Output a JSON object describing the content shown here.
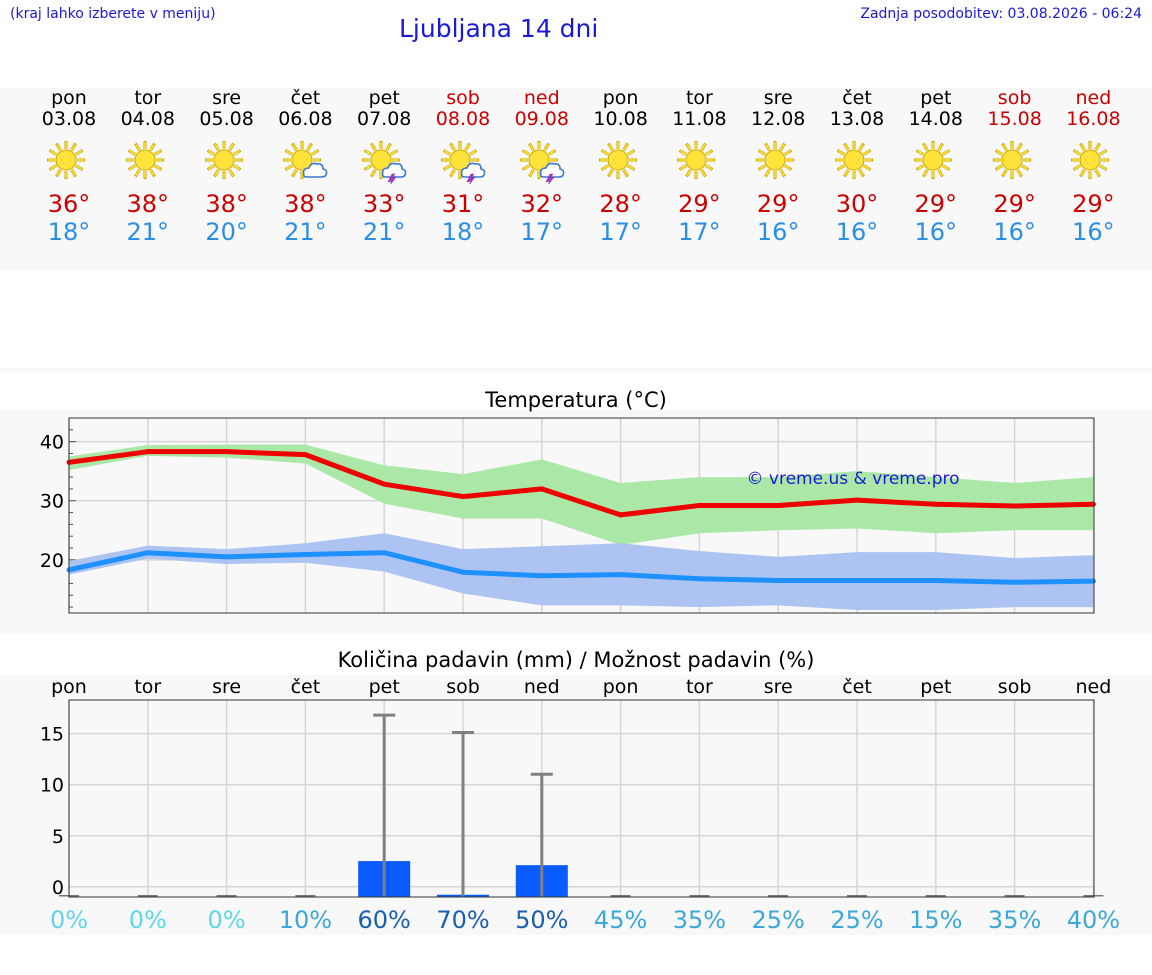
{
  "header": {
    "left_note": "(kraj lahko izberete v meniju)",
    "title": "Ljubljana 14 dni",
    "updated": "Zadnja posodobitev: 03.08.2026 - 06:24"
  },
  "colors": {
    "title_blue": "#1a1ad6",
    "weekend_red": "#cc0000",
    "max_line": "#ee0000",
    "max_band": "#abe8a8",
    "min_line": "#1e90ff",
    "min_band": "#adc4f2",
    "precip_bar": "#0a5cff",
    "error_bar": "#808080"
  },
  "days": [
    {
      "name": "pon",
      "date": "03.08",
      "weekend": false,
      "icon": "sun-icon",
      "tmax": "36°",
      "tmin": "18°"
    },
    {
      "name": "tor",
      "date": "04.08",
      "weekend": false,
      "icon": "sun-icon",
      "tmax": "38°",
      "tmin": "21°"
    },
    {
      "name": "sre",
      "date": "05.08",
      "weekend": false,
      "icon": "sun-icon",
      "tmax": "38°",
      "tmin": "20°"
    },
    {
      "name": "čet",
      "date": "06.08",
      "weekend": false,
      "icon": "sun-cloud-icon",
      "tmax": "38°",
      "tmin": "21°"
    },
    {
      "name": "pet",
      "date": "07.08",
      "weekend": false,
      "icon": "sun-storm-icon",
      "tmax": "33°",
      "tmin": "21°"
    },
    {
      "name": "sob",
      "date": "08.08",
      "weekend": true,
      "icon": "sun-storm-icon",
      "tmax": "31°",
      "tmin": "18°"
    },
    {
      "name": "ned",
      "date": "09.08",
      "weekend": true,
      "icon": "sun-storm-icon",
      "tmax": "32°",
      "tmin": "17°"
    },
    {
      "name": "pon",
      "date": "10.08",
      "weekend": false,
      "icon": "sun-icon",
      "tmax": "28°",
      "tmin": "17°"
    },
    {
      "name": "tor",
      "date": "11.08",
      "weekend": false,
      "icon": "sun-icon",
      "tmax": "29°",
      "tmin": "17°"
    },
    {
      "name": "sre",
      "date": "12.08",
      "weekend": false,
      "icon": "sun-icon",
      "tmax": "29°",
      "tmin": "16°"
    },
    {
      "name": "čet",
      "date": "13.08",
      "weekend": false,
      "icon": "sun-icon",
      "tmax": "30°",
      "tmin": "16°"
    },
    {
      "name": "pet",
      "date": "14.08",
      "weekend": false,
      "icon": "sun-icon",
      "tmax": "29°",
      "tmin": "16°"
    },
    {
      "name": "sob",
      "date": "15.08",
      "weekend": true,
      "icon": "sun-icon",
      "tmax": "29°",
      "tmin": "16°"
    },
    {
      "name": "ned",
      "date": "16.08",
      "weekend": true,
      "icon": "sun-icon",
      "tmax": "29°",
      "tmin": "16°"
    }
  ],
  "chart_data": [
    {
      "type": "line",
      "title": "Temperatura (°C)",
      "x": [
        "03.08",
        "04.08",
        "05.08",
        "06.08",
        "07.08",
        "08.08",
        "09.08",
        "10.08",
        "11.08",
        "12.08",
        "13.08",
        "14.08",
        "15.08",
        "16.08"
      ],
      "xlabel": "",
      "ylabel": "",
      "ylim": [
        11,
        44
      ],
      "yticks": [
        20,
        30,
        40
      ],
      "grid": true,
      "watermark": "© vreme.us & vreme.pro",
      "series": [
        {
          "values": [
            36.5,
            38.3,
            38.3,
            37.8,
            32.8,
            30.7,
            32.0,
            27.6,
            29.2,
            29.2,
            30.1,
            29.4,
            29.1,
            29.4
          ],
          "band_low": [
            35.2,
            37.6,
            37.3,
            36.3,
            29.5,
            27.0,
            27.0,
            22.5,
            24.5,
            25.0,
            25.3,
            24.5,
            25.0,
            25.0
          ],
          "band_high": [
            37.5,
            39.4,
            39.5,
            39.5,
            36.0,
            34.5,
            37.0,
            33.0,
            34.0,
            34.0,
            35.0,
            34.0,
            33.0,
            34.0
          ]
        },
        {
          "values": [
            18.3,
            21.2,
            20.5,
            20.9,
            21.2,
            17.9,
            17.3,
            17.5,
            16.8,
            16.5,
            16.5,
            16.5,
            16.2,
            16.4
          ],
          "band_low": [
            17.5,
            20.2,
            19.3,
            19.5,
            18.0,
            14.3,
            12.3,
            12.3,
            12.0,
            12.3,
            11.5,
            11.5,
            12.0,
            12.0
          ],
          "band_high": [
            19.8,
            22.4,
            21.8,
            22.8,
            24.5,
            21.8,
            22.3,
            22.8,
            21.5,
            20.5,
            21.3,
            21.3,
            20.3,
            20.8
          ]
        }
      ]
    },
    {
      "type": "bar",
      "title": "Količina padavin (mm) / Možnost padavin (%)",
      "categories": [
        "pon",
        "tor",
        "sre",
        "čet",
        "pet",
        "sob",
        "ned",
        "pon",
        "tor",
        "sre",
        "čet",
        "pet",
        "sob",
        "ned"
      ],
      "xlabel": "",
      "ylabel": "",
      "ylim": [
        -1,
        18.3
      ],
      "yticks": [
        0,
        5,
        10,
        15
      ],
      "tick_labels": [
        "0",
        "5",
        "10",
        "15"
      ],
      "grid": true,
      "values": [
        0,
        0,
        0,
        0,
        3.5,
        0.2,
        3.1,
        0,
        0,
        0,
        0,
        0,
        0,
        0
      ],
      "max_values": [
        0,
        0,
        0,
        0,
        17.8,
        16.1,
        12.0,
        0,
        0,
        0,
        0,
        0,
        0,
        0
      ],
      "probabilities": [
        "0%",
        "0%",
        "0%",
        "10%",
        "60%",
        "70%",
        "50%",
        "45%",
        "35%",
        "25%",
        "25%",
        "15%",
        "35%",
        "40%"
      ],
      "probability_colors": [
        "#5cd6e8",
        "#5cd6e8",
        "#5cd6e8",
        "#3ba7dc",
        "#1a5fb0",
        "#1a5fb0",
        "#1a5fb0",
        "#3ba7dc",
        "#3ba7dc",
        "#3ba7dc",
        "#3ba7dc",
        "#3ba7dc",
        "#3ba7dc",
        "#3ba7dc"
      ]
    }
  ]
}
